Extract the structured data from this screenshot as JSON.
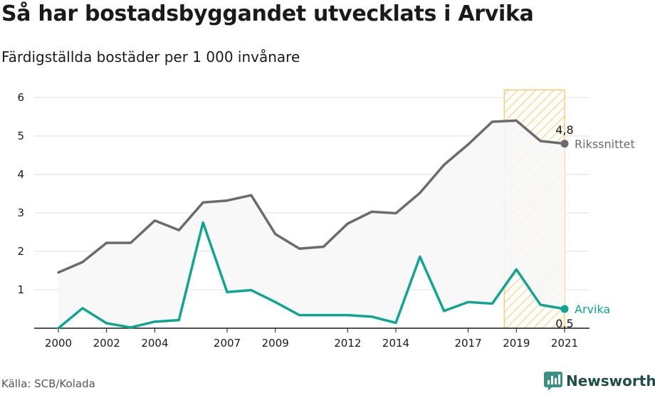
{
  "header": {
    "title": "Så har bostadsbyggandet utvecklats i Arvika",
    "subtitle": "Färdigställda bostäder per 1 000 invånare"
  },
  "footer": {
    "source": "Källa: SCB/Kolada",
    "brand": "Newsworthy"
  },
  "colors": {
    "riket": "#6d6a6f",
    "arvika": "#0fa593",
    "highlight_stroke": "#f5cf73",
    "highlight_hatch": "#f7dc9a",
    "area_fill": "#f7f7f8",
    "grid": "#e1e1e1"
  },
  "chart_data": {
    "type": "line",
    "title": "Så har bostadsbyggandet utvecklats i Arvika",
    "subtitle": "Färdigställda bostäder per 1 000 invånare",
    "x": [
      2000,
      2001,
      2002,
      2003,
      2004,
      2005,
      2006,
      2007,
      2008,
      2009,
      2010,
      2011,
      2012,
      2013,
      2014,
      2015,
      2016,
      2017,
      2018,
      2019,
      2020,
      2021
    ],
    "xticks": [
      2000,
      2002,
      2004,
      2007,
      2009,
      2012,
      2014,
      2017,
      2019,
      2021
    ],
    "yticks": [
      1,
      2,
      3,
      4,
      5,
      6
    ],
    "ylim": [
      0,
      6.2
    ],
    "xlim": [
      2000,
      2021
    ],
    "grid": true,
    "highlight_range": [
      2018.5,
      2021
    ],
    "series": [
      {
        "name": "Rikssnittet",
        "values": [
          1.45,
          1.72,
          2.22,
          2.22,
          2.8,
          2.55,
          3.27,
          3.32,
          3.46,
          2.45,
          2.07,
          2.12,
          2.72,
          3.03,
          2.99,
          3.52,
          4.25,
          4.78,
          5.37,
          5.4,
          4.87,
          4.8
        ],
        "end_value_label": "4,8"
      },
      {
        "name": "Arvika",
        "values": [
          0.0,
          0.52,
          0.13,
          0.02,
          0.17,
          0.21,
          2.75,
          0.94,
          0.99,
          0.68,
          0.34,
          0.34,
          0.34,
          0.3,
          0.14,
          1.86,
          0.45,
          0.68,
          0.64,
          1.53,
          0.61,
          0.5
        ],
        "end_value_label": "0,5"
      }
    ]
  }
}
